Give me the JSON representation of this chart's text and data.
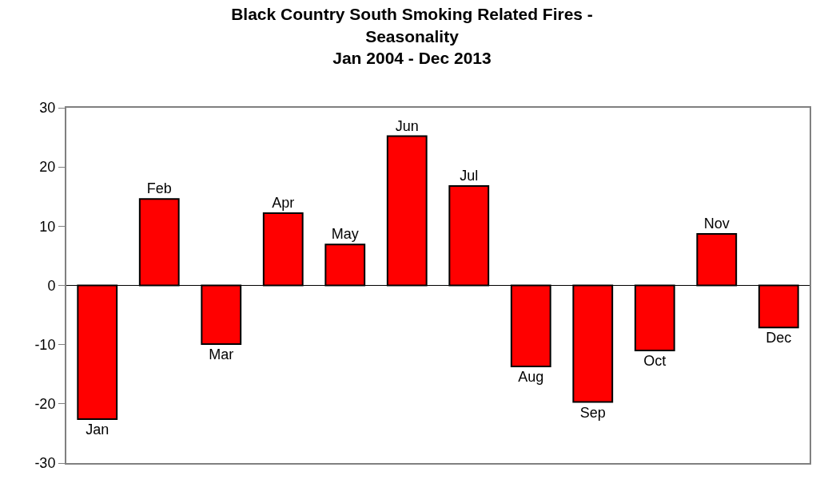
{
  "chart_data": {
    "type": "bar",
    "title": "Black Country South Smoking Related Fires -\nSeasonality\nJan 2004 - Dec 2013",
    "categories": [
      "Jan",
      "Feb",
      "Mar",
      "Apr",
      "May",
      "Jun",
      "Jul",
      "Aug",
      "Sep",
      "Oct",
      "Nov",
      "Dec"
    ],
    "values": [
      -22.6,
      14.6,
      -9.9,
      12.2,
      6.9,
      25.2,
      16.8,
      -13.7,
      -19.7,
      -11.0,
      8.7,
      -7.1
    ],
    "color": "#ff0000",
    "ylim": [
      -30,
      30
    ],
    "yticks": [
      -30,
      -20,
      -10,
      0,
      10,
      20,
      30
    ],
    "tick_labels": "y"
  }
}
